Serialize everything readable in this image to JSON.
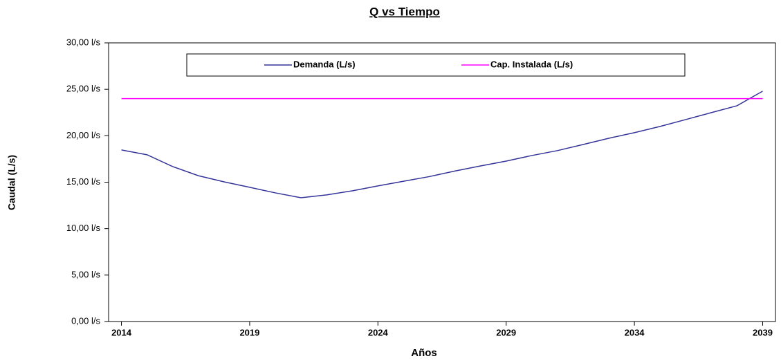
{
  "chart_data": {
    "type": "line",
    "title": "Q vs Tiempo",
    "x_label": "Años",
    "y_label": "Caudal (L/s)",
    "x": [
      2014,
      2015,
      2016,
      2017,
      2018,
      2019,
      2020,
      2021,
      2022,
      2023,
      2024,
      2025,
      2026,
      2027,
      2028,
      2029,
      2030,
      2031,
      2032,
      2033,
      2034,
      2035,
      2036,
      2037,
      2038,
      2039
    ],
    "series": [
      {
        "name": "Demanda (L/s)",
        "color": "#333399",
        "values": [
          18.47,
          17.95,
          16.68,
          15.7,
          15.04,
          14.45,
          13.85,
          13.33,
          13.63,
          14.07,
          14.6,
          15.1,
          15.6,
          16.2,
          16.75,
          17.27,
          17.87,
          18.4,
          19.06,
          19.73,
          20.33,
          21.0,
          21.74,
          22.49,
          23.23,
          24.8
        ]
      },
      {
        "name": "Cap. Instalada (L/s)",
        "color": "#ff00ff",
        "values": [
          24,
          24,
          24,
          24,
          24,
          24,
          24,
          24,
          24,
          24,
          24,
          24,
          24,
          24,
          24,
          24,
          24,
          24,
          24,
          24,
          24,
          24,
          24,
          24,
          24,
          24
        ]
      }
    ],
    "xlim": [
      2013.5,
      2039.5
    ],
    "xticks": [
      2014,
      2019,
      2024,
      2029,
      2034,
      2039
    ],
    "ylim": [
      0,
      30
    ],
    "yticks": [
      {
        "value": 0,
        "label": "0,00 l/s"
      },
      {
        "value": 5,
        "label": "5,00 l/s"
      },
      {
        "value": 10,
        "label": "10,00 l/s"
      },
      {
        "value": 15,
        "label": "15,00 l/s"
      },
      {
        "value": 20,
        "label": "20,00 l/s"
      },
      {
        "value": 25,
        "label": "25,00 l/s"
      },
      {
        "value": 30,
        "label": "30,00 l/s"
      }
    ],
    "grid": false,
    "legend": "top"
  }
}
